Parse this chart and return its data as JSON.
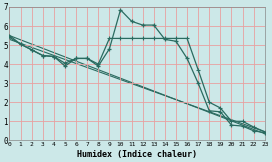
{
  "xlabel": "Humidex (Indice chaleur)",
  "background_color": "#cce8e8",
  "grid_color": "#e8a0a0",
  "line_color": "#2a6b60",
  "xlim": [
    0,
    23
  ],
  "ylim": [
    0,
    7
  ],
  "xtick_labels": [
    "0",
    "1",
    "2",
    "3",
    "4",
    "5",
    "6",
    "7",
    "8",
    "9",
    "10",
    "11",
    "12",
    "13",
    "14",
    "15",
    "16",
    "17",
    "18",
    "19",
    "20",
    "21",
    "22",
    "23"
  ],
  "ytick_labels": [
    "0",
    "1",
    "2",
    "3",
    "4",
    "5",
    "6",
    "7"
  ],
  "series1_x": [
    0,
    1,
    2,
    3,
    4,
    5,
    6,
    7,
    8,
    9,
    10,
    11,
    12,
    13,
    14,
    15,
    16,
    17,
    18,
    19,
    20,
    21,
    22,
    23
  ],
  "series1_y": [
    5.5,
    5.05,
    4.75,
    4.45,
    4.4,
    3.9,
    4.3,
    4.3,
    3.9,
    4.8,
    6.85,
    6.25,
    6.05,
    6.05,
    5.3,
    5.2,
    4.3,
    3.0,
    1.55,
    1.5,
    0.8,
    0.75,
    0.5,
    0.4
  ],
  "series2_x": [
    0,
    1,
    2,
    3,
    4,
    5,
    6,
    7,
    8,
    9,
    10,
    11,
    12,
    13,
    14,
    15,
    16,
    17,
    18,
    19,
    20,
    21,
    22,
    23
  ],
  "series2_y": [
    5.4,
    5.05,
    4.75,
    4.45,
    4.4,
    4.05,
    4.3,
    4.3,
    4.0,
    5.35,
    5.35,
    5.35,
    5.35,
    5.35,
    5.35,
    5.35,
    5.35,
    3.7,
    2.0,
    1.7,
    1.0,
    1.0,
    0.7,
    0.45
  ],
  "trend1_x": [
    0,
    23
  ],
  "trend1_y": [
    5.5,
    0.35
  ],
  "trend2_x": [
    0,
    23
  ],
  "trend2_y": [
    5.3,
    0.45
  ]
}
